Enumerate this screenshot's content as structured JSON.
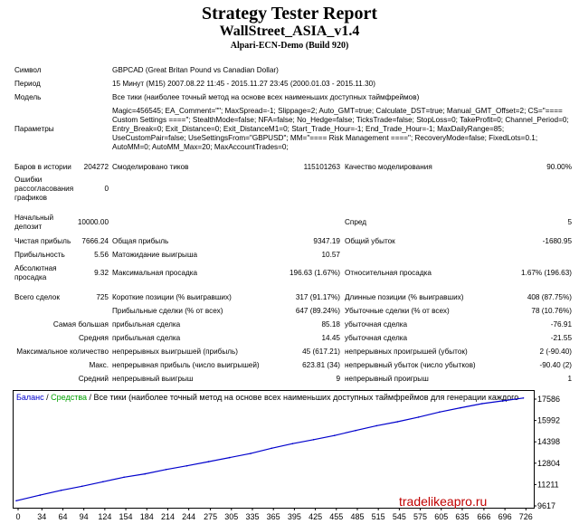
{
  "header": {
    "title": "Strategy Tester Report",
    "ea_name": "WallStreet_ASIA_v1.4",
    "server": "Alpari-ECN-Demo (Build 920)"
  },
  "info": {
    "symbol_label": "Символ",
    "symbol_value": "GBPCAD (Great Britan Pound vs Canadian Dollar)",
    "period_label": "Период",
    "period_value": "15 Минут (M15) 2007.08.22 11:45 - 2015.11.27 23:45 (2000.01.03 - 2015.11.30)",
    "model_label": "Модель",
    "model_value": "Все тики (наиболее точный метод на основе всех наименьших доступных таймфреймов)",
    "params_label": "Параметры",
    "params_value": "Magic=456545; EA_Comment=\"\"; MaxSpread=-1; Slippage=2; Auto_GMT=true; Calculate_DST=true; Manual_GMT_Offset=2; CS=\"==== Custom Settings ====\"; StealthMode=false; NFA=false; No_Hedge=false; TicksTrade=false; StopLoss=0; TakeProfit=0; Channel_Period=0; Entry_Break=0; Exit_Distance=0; Exit_DistanceM1=0; Start_Trade_Hour=-1; End_Trade_Hour=-1; MaxDailyRange=85; UseCustomPair=false; UseSettingsFrom=\"GBPUSD\"; MM=\"==== Risk Management ====\"; RecoveryMode=false; FixedLots=0.1; AutoMM=0; AutoMM_Max=20; MaxAccountTrades=0;"
  },
  "stats": {
    "bars_label": "Баров в истории",
    "bars_value": "204272",
    "ticks_label": "Смоделировано тиков",
    "ticks_value": "115101263",
    "quality_label": "Качество моделирования",
    "quality_value": "90.00%",
    "errors_label_1": "Ошибки",
    "errors_label_2": "рассогласования",
    "errors_label_3": "графиков",
    "errors_value": "0",
    "deposit_label_1": "Начальный",
    "deposit_label_2": "депозит",
    "deposit_value": "10000.00",
    "spread_label": "Спред",
    "spread_value": "5",
    "net_profit_label": "Чистая прибыль",
    "net_profit_value": "7666.24",
    "gross_profit_label": "Общая прибыль",
    "gross_profit_value": "9347.19",
    "gross_loss_label": "Общий убыток",
    "gross_loss_value": "-1680.95",
    "profit_factor_label": "Прибыльность",
    "profit_factor_value": "5.56",
    "expected_payoff_label": "Матожидание выигрыша",
    "expected_payoff_value": "10.57",
    "abs_dd_label_1": "Абсолютная",
    "abs_dd_label_2": "просадка",
    "abs_dd_value": "9.32",
    "max_dd_label": "Максимальная просадка",
    "max_dd_value": "196.63 (1.67%)",
    "rel_dd_label": "Относительная просадка",
    "rel_dd_value": "1.67% (196.63)",
    "total_trades_label": "Всего сделок",
    "total_trades_value": "725",
    "short_label": "Короткие позиции (% выигравших)",
    "short_value": "317 (91.17%)",
    "long_label": "Длинные позиции (% выигравших)",
    "long_value": "408 (87.75%)",
    "profit_trades_label": "Прибыльные сделки (% от всех)",
    "profit_trades_value": "647 (89.24%)",
    "loss_trades_label": "Убыточные сделки (% от всех)",
    "loss_trades_value": "78 (10.76%)",
    "largest_label": "Самая большая",
    "largest_profit_label": "прибыльная сделка",
    "largest_profit_value": "85.18",
    "largest_loss_label": "убыточная сделка",
    "largest_loss_value": "-76.91",
    "average_label": "Средняя",
    "average_profit_label": "прибыльная сделка",
    "average_profit_value": "14.45",
    "average_loss_label": "убыточная сделка",
    "average_loss_value": "-21.55",
    "max_count_label": "Максимальное количество",
    "cons_wins_label": "непрерывных выигрышей (прибыль)",
    "cons_wins_value": "45 (617.21)",
    "cons_losses_label": "непрерывных проигрышей (убыток)",
    "cons_losses_value": "2 (-90.40)",
    "max_label": "Макс.",
    "cons_profit_label": "непрерывная прибыль (число выигрышей)",
    "cons_profit_value": "623.81 (34)",
    "cons_loss_label": "непрерывный убыток (число убытков)",
    "cons_loss_value": "-90.40 (2)",
    "avg_cons_label": "Средний",
    "avg_cons_wins_label": "непрерывный выигрыш",
    "avg_cons_wins_value": "9",
    "avg_cons_losses_label": "непрерывный проигрыш",
    "avg_cons_losses_value": "1"
  },
  "chart_caption": {
    "balance": "Баланс",
    "sep1": " / ",
    "equity": "Средства",
    "sep2": " / ",
    "rest": "Все тики (наиболее точный метод на основе всех наименьших доступных таймфреймов для генерации каждого"
  },
  "colors": {
    "balance_line": "#0000cc",
    "balance_caption": "#0000cc",
    "equity_caption": "#00a000",
    "watermark": "#c00000"
  },
  "chart_data": {
    "type": "line",
    "title": "",
    "xlabel": "",
    "ylabel": "",
    "x_ticks": [
      "0",
      "34",
      "64",
      "94",
      "124",
      "154",
      "184",
      "214",
      "244",
      "275",
      "305",
      "335",
      "365",
      "395",
      "425",
      "455",
      "485",
      "515",
      "545",
      "575",
      "605",
      "635",
      "666",
      "696",
      "726"
    ],
    "y_ticks": [
      "17586",
      "15992",
      "14398",
      "12804",
      "11211",
      "9617"
    ],
    "ylim": [
      9617,
      17586
    ],
    "xlim": [
      0,
      745
    ],
    "grid": false,
    "series": [
      {
        "name": "Баланс",
        "x": [
          0,
          34,
          64,
          94,
          124,
          154,
          184,
          214,
          244,
          275,
          305,
          335,
          365,
          395,
          425,
          455,
          485,
          515,
          545,
          575,
          605,
          635,
          666,
          696,
          725
        ],
        "y": [
          10000,
          10420,
          10780,
          11080,
          11420,
          11760,
          12010,
          12330,
          12610,
          12920,
          13220,
          13530,
          13920,
          14260,
          14560,
          14870,
          15240,
          15600,
          15900,
          16240,
          16620,
          16940,
          17250,
          17460,
          17666
        ]
      }
    ]
  },
  "watermark": "tradelikeapro.ru"
}
